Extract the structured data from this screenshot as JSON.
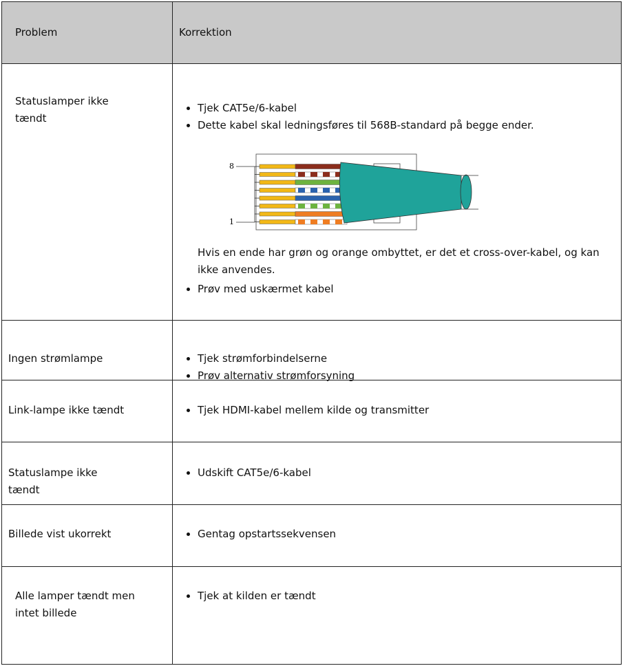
{
  "table": {
    "header": [
      "Problem",
      "Korrektion"
    ],
    "rows": [
      {
        "problem": "Statuslamper ikke tændt",
        "bullets": [
          "Tjek CAT5e/6-kabel",
          "Dette kabel skal ledningsføres til 568B-standard på begge ender."
        ],
        "figure": {
          "pin_top": "8",
          "pin_bottom": "1"
        },
        "note": "Hvis en ende har grøn og orange ombyttet, er det et cross-over-kabel, og kan ikke anvendes.",
        "bullets_after": [
          "Prøv med uskærmet kabel"
        ]
      },
      {
        "problem": "Ingen strømlampe",
        "bullets": [
          "Tjek strømforbindelserne",
          "Prøv alternativ strømforsyning"
        ]
      },
      {
        "problem": "Link-lampe ikke tændt",
        "bullets": [
          "Tjek HDMI-kabel mellem kilde og transmitter"
        ]
      },
      {
        "problem": "Statuslampe ikke tændt",
        "bullets": [
          "Udskift CAT5e/6-kabel"
        ]
      },
      {
        "problem": "Billede vist ukorrekt",
        "bullets": [
          "Gentag opstartssekvensen"
        ]
      },
      {
        "problem": "Alle lamper tændt men intet billede",
        "bullets": [
          "Tjek at kilden er tændt"
        ]
      }
    ]
  }
}
